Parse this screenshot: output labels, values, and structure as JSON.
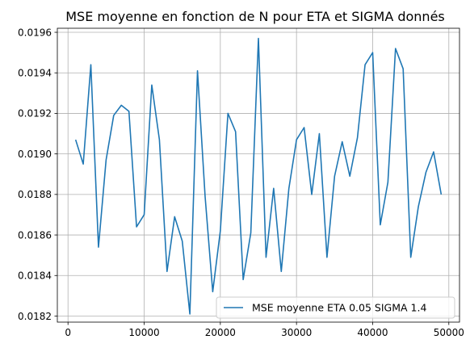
{
  "chart_data": {
    "type": "line",
    "title": "MSE moyenne en fonction de N pour ETA et SIGMA donnés",
    "xlabel": "",
    "ylabel": "",
    "xlim": [
      -1400,
      51400
    ],
    "ylim": [
      0.01817,
      0.01962
    ],
    "xticks": [
      0,
      10000,
      20000,
      30000,
      40000,
      50000
    ],
    "xtick_labels": [
      "0",
      "10000",
      "20000",
      "30000",
      "40000",
      "50000"
    ],
    "yticks": [
      0.0182,
      0.0184,
      0.0186,
      0.0188,
      0.019,
      0.0192,
      0.0194,
      0.0196
    ],
    "ytick_labels": [
      "0.0182",
      "0.0184",
      "0.0186",
      "0.0188",
      "0.0190",
      "0.0192",
      "0.0194",
      "0.0196"
    ],
    "grid": true,
    "legend_position": "lower right",
    "series": [
      {
        "name": "MSE moyenne ETA 0.05 SIGMA 1.4",
        "color": "#1f77b4",
        "x": [
          1000,
          2000,
          3000,
          4000,
          5000,
          6000,
          7000,
          8000,
          9000,
          10000,
          11000,
          12000,
          13000,
          14000,
          15000,
          16000,
          17000,
          18000,
          19000,
          20000,
          21000,
          22000,
          23000,
          24000,
          25000,
          26000,
          27000,
          28000,
          29000,
          30000,
          31000,
          32000,
          33000,
          34000,
          35000,
          36000,
          37000,
          38000,
          39000,
          40000,
          41000,
          42000,
          43000,
          44000,
          45000,
          46000,
          47000,
          48000,
          49000
        ],
        "y": [
          0.01907,
          0.01895,
          0.01944,
          0.01854,
          0.01897,
          0.01919,
          0.01924,
          0.01921,
          0.01864,
          0.0187,
          0.01934,
          0.01907,
          0.01842,
          0.01869,
          0.01857,
          0.01821,
          0.01941,
          0.01879,
          0.01832,
          0.01862,
          0.0192,
          0.01911,
          0.01838,
          0.01861,
          0.01957,
          0.01849,
          0.01883,
          0.01842,
          0.01883,
          0.01907,
          0.01913,
          0.0188,
          0.0191,
          0.01849,
          0.01889,
          0.01906,
          0.01889,
          0.01908,
          0.01944,
          0.0195,
          0.01865,
          0.01886,
          0.01952,
          0.01942,
          0.01849,
          0.01874,
          0.01891,
          0.01901,
          0.0188
        ]
      }
    ]
  }
}
